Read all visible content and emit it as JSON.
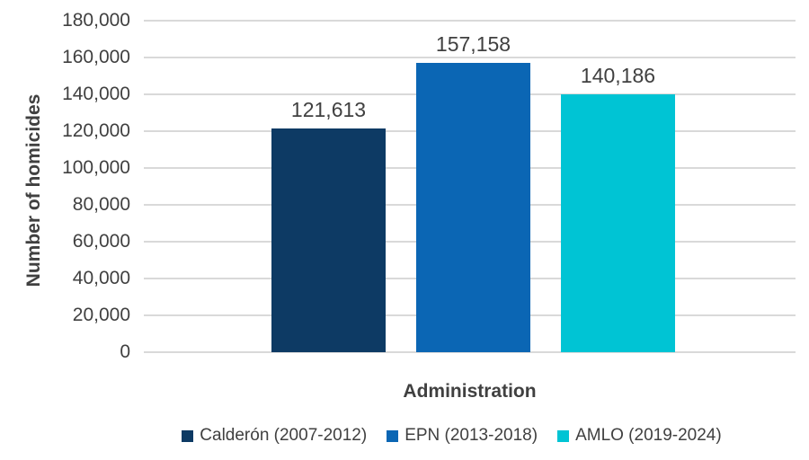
{
  "chart_data": {
    "type": "bar",
    "title": "",
    "xlabel": "Administration",
    "ylabel": "Number of homicides",
    "categories": [
      "Calderón (2007-2012)",
      "EPN (2013-2018)",
      "AMLO (2019-2024)"
    ],
    "values": [
      121613,
      157158,
      140186
    ],
    "value_labels": [
      "121,613",
      "157,158",
      "140,186"
    ],
    "bar_colors": [
      "#0d3a64",
      "#0b66b4",
      "#00c4d4"
    ],
    "ylim": [
      0,
      180000
    ],
    "ytick_interval": 20000,
    "ytick_labels": [
      "180,000",
      "160,000",
      "140,000",
      "120,000",
      "100,000",
      "80,000",
      "60,000",
      "40,000",
      "20,000",
      "0"
    ],
    "grid": true,
    "legend_position": "bottom",
    "legend": {
      "entries": [
        {
          "label": "Calderón (2007-2012)",
          "color": "#0d3a64"
        },
        {
          "label": "EPN (2013-2018)",
          "color": "#0b66b4"
        },
        {
          "label": "AMLO (2019-2024)",
          "color": "#00c4d4"
        }
      ]
    }
  },
  "colors": {
    "text": "#404040",
    "gridline": "#d9d9d9",
    "background": "#ffffff"
  }
}
